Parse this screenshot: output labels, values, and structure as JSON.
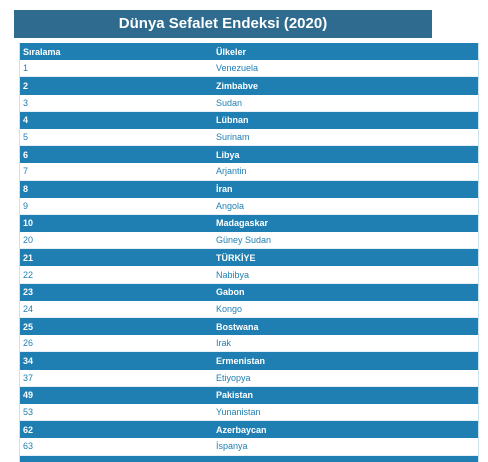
{
  "title": "Dünya Sefalet Endeksi (2020)",
  "table": {
    "headers": [
      "Sıralama",
      "Ülkeler"
    ],
    "rows": [
      {
        "rank": "1",
        "country": "Venezuela"
      },
      {
        "rank": "2",
        "country": "Zimbabve"
      },
      {
        "rank": "3",
        "country": "Sudan"
      },
      {
        "rank": "4",
        "country": "Lübnan"
      },
      {
        "rank": "5",
        "country": "Surinam"
      },
      {
        "rank": "6",
        "country": "Libya"
      },
      {
        "rank": "7",
        "country": "Arjantin"
      },
      {
        "rank": "8",
        "country": "İran"
      },
      {
        "rank": "9",
        "country": "Angola"
      },
      {
        "rank": "10",
        "country": "Madagaskar"
      },
      {
        "rank": "20",
        "country": "Güney Sudan"
      },
      {
        "rank": "21",
        "country": "TÜRKİYE"
      },
      {
        "rank": "22",
        "country": "Nabibya"
      },
      {
        "rank": "23",
        "country": "Gabon"
      },
      {
        "rank": "24",
        "country": "Kongo"
      },
      {
        "rank": "25",
        "country": "Bostwana"
      },
      {
        "rank": "26",
        "country": "Irak"
      },
      {
        "rank": "34",
        "country": "Ermenistan"
      },
      {
        "rank": "37",
        "country": "Etiyopya"
      },
      {
        "rank": "49",
        "country": "Pakistan"
      },
      {
        "rank": "53",
        "country": "Yunanistan"
      },
      {
        "rank": "62",
        "country": "Azerbaycan"
      },
      {
        "rank": "63",
        "country": "İspanya"
      }
    ]
  },
  "colors": {
    "title_bg": "#2e6b8f",
    "header_bg": "#1f7fb3",
    "dark_row_bg": "#1f7fb3",
    "light_row_text": "#1f7fb3"
  }
}
